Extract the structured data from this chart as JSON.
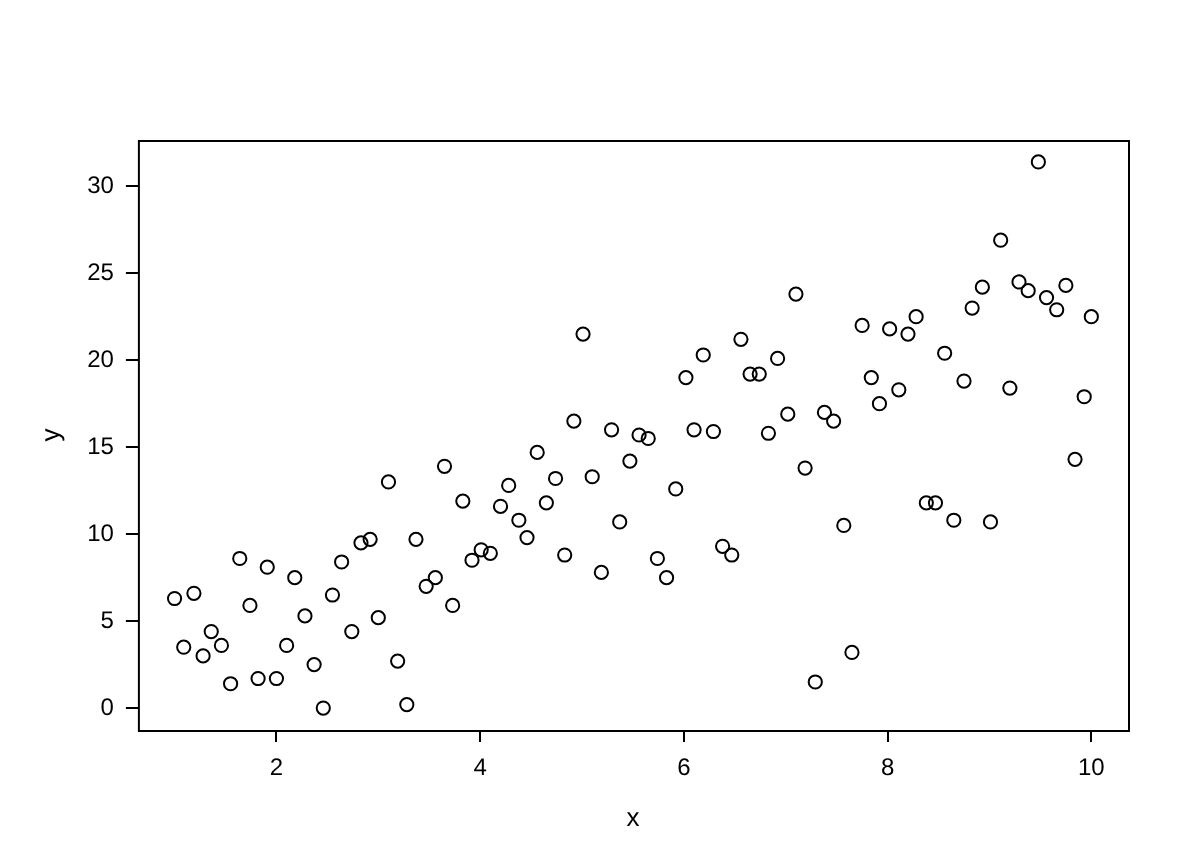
{
  "chart_data": {
    "type": "scatter",
    "xlabel": "x",
    "ylabel": "y",
    "marker": "circle",
    "grid": false,
    "legend": false,
    "xlim": [
      0.64,
      10.36
    ],
    "ylim": [
      -1.26,
      32.66
    ],
    "xticks": [
      2,
      4,
      6,
      8,
      10
    ],
    "yticks": [
      0,
      5,
      10,
      15,
      20,
      25,
      30
    ],
    "series": [
      {
        "color": "#000000",
        "x": [
          1.0,
          1.09,
          1.19,
          1.28,
          1.36,
          1.46,
          1.55,
          1.64,
          1.74,
          1.82,
          1.91,
          2.0,
          2.1,
          2.18,
          2.28,
          2.37,
          2.46,
          2.55,
          2.64,
          2.74,
          2.83,
          2.92,
          3.0,
          3.1,
          3.19,
          3.28,
          3.37,
          3.47,
          3.56,
          3.65,
          3.73,
          3.83,
          3.92,
          4.01,
          4.1,
          4.2,
          4.28,
          4.38,
          4.46,
          4.56,
          4.65,
          4.74,
          4.83,
          4.92,
          5.01,
          5.1,
          5.19,
          5.29,
          5.37,
          5.47,
          5.56,
          5.65,
          5.74,
          5.83,
          5.92,
          6.02,
          6.1,
          6.19,
          6.29,
          6.38,
          6.47,
          6.56,
          6.65,
          6.74,
          6.83,
          6.92,
          7.02,
          7.1,
          7.19,
          7.29,
          7.38,
          7.47,
          7.57,
          7.65,
          7.75,
          7.84,
          7.92,
          8.02,
          8.11,
          8.2,
          8.28,
          8.38,
          8.47,
          8.56,
          8.65,
          8.75,
          8.83,
          8.93,
          9.01,
          9.11,
          9.2,
          9.29,
          9.38,
          9.48,
          9.56,
          9.66,
          9.75,
          9.84,
          9.93,
          10.0
        ],
        "values": [
          6.3,
          3.5,
          6.6,
          3.0,
          4.4,
          3.6,
          1.4,
          8.6,
          5.9,
          1.7,
          8.1,
          1.7,
          3.6,
          7.5,
          5.3,
          2.5,
          0.0,
          6.5,
          8.4,
          4.4,
          9.5,
          9.7,
          5.2,
          13.0,
          2.7,
          0.2,
          9.7,
          7.0,
          7.5,
          13.9,
          5.9,
          11.9,
          8.5,
          9.1,
          8.9,
          11.6,
          12.8,
          10.8,
          9.8,
          14.7,
          11.8,
          13.2,
          8.8,
          16.5,
          21.5,
          13.3,
          7.8,
          16.0,
          10.7,
          14.2,
          15.7,
          15.5,
          8.6,
          7.5,
          12.6,
          19.0,
          16.0,
          20.3,
          15.9,
          9.3,
          8.8,
          21.2,
          19.2,
          19.2,
          15.8,
          20.1,
          16.9,
          23.8,
          13.8,
          1.5,
          17.0,
          16.5,
          10.5,
          3.2,
          22.0,
          19.0,
          17.5,
          21.8,
          18.3,
          21.5,
          22.5,
          11.8,
          11.8,
          20.4,
          10.8,
          18.8,
          23.0,
          24.2,
          10.7,
          26.9,
          18.4,
          24.5,
          24.0,
          31.4,
          23.6,
          22.9,
          24.3,
          14.3,
          17.9,
          22.5
        ]
      }
    ]
  }
}
